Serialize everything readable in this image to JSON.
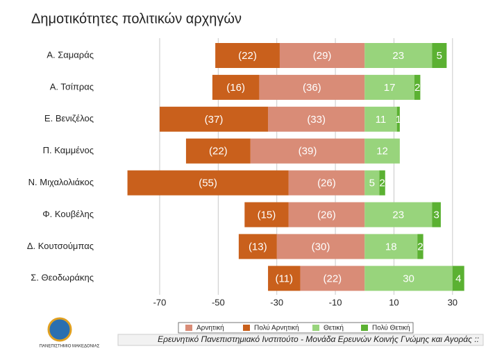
{
  "chart_data": {
    "type": "diverging_bar",
    "title": "Δημοτικότητες πολιτικών αρχηγών",
    "categories": [
      "Α. Σαμαράς",
      "Α. Τσίπρας",
      "Ε. Βενιζέλος",
      "Π. Καμμένος",
      "Ν. Μιχαλολιάκος",
      "Φ. Κουβέλης",
      "Δ. Κουτσούμπας",
      "Σ. Θεοδωράκης"
    ],
    "series": [
      {
        "name": "Αρνητική",
        "color": "#d98c77",
        "values": [
          -29,
          -36,
          -33,
          -39,
          -26,
          -26,
          -30,
          -22
        ],
        "value_labels": [
          "(29)",
          "(36)",
          "(33)",
          "(39)",
          "(26)",
          "(26)",
          "(30)",
          "(22)"
        ]
      },
      {
        "name": "Πολύ Αρνητική",
        "color": "#c9601c",
        "values": [
          -22,
          -16,
          -37,
          -22,
          -55,
          -15,
          -13,
          -11
        ],
        "value_labels": [
          "(22)",
          "(16)",
          "(37)",
          "(22)",
          "(55)",
          "(15)",
          "(13)",
          "(11)"
        ]
      },
      {
        "name": "Θετική",
        "color": "#98d47c",
        "values": [
          23,
          17,
          11,
          12,
          5,
          23,
          18,
          30
        ]
      },
      {
        "name": "Πολύ Θετική",
        "color": "#5bb132",
        "values": [
          5,
          2,
          1,
          null,
          2,
          3,
          2,
          4
        ]
      }
    ],
    "xlim": [
      -90,
      40
    ],
    "xticks": [
      -70,
      -50,
      -30,
      -10,
      10,
      30
    ],
    "grid": true,
    "legend": "bottom"
  },
  "footer": {
    "text": "Ερευνητικό Πανεπιστημιακό Ινστιτούτο - Μονάδα Ερευνών Κοινής Γνώμης και Αγοράς ::",
    "logo": "ΠΑΝΕΠΙΣΤΗΜΙΟ ΜΑΚΕΔΟΝΙΑΣ"
  }
}
